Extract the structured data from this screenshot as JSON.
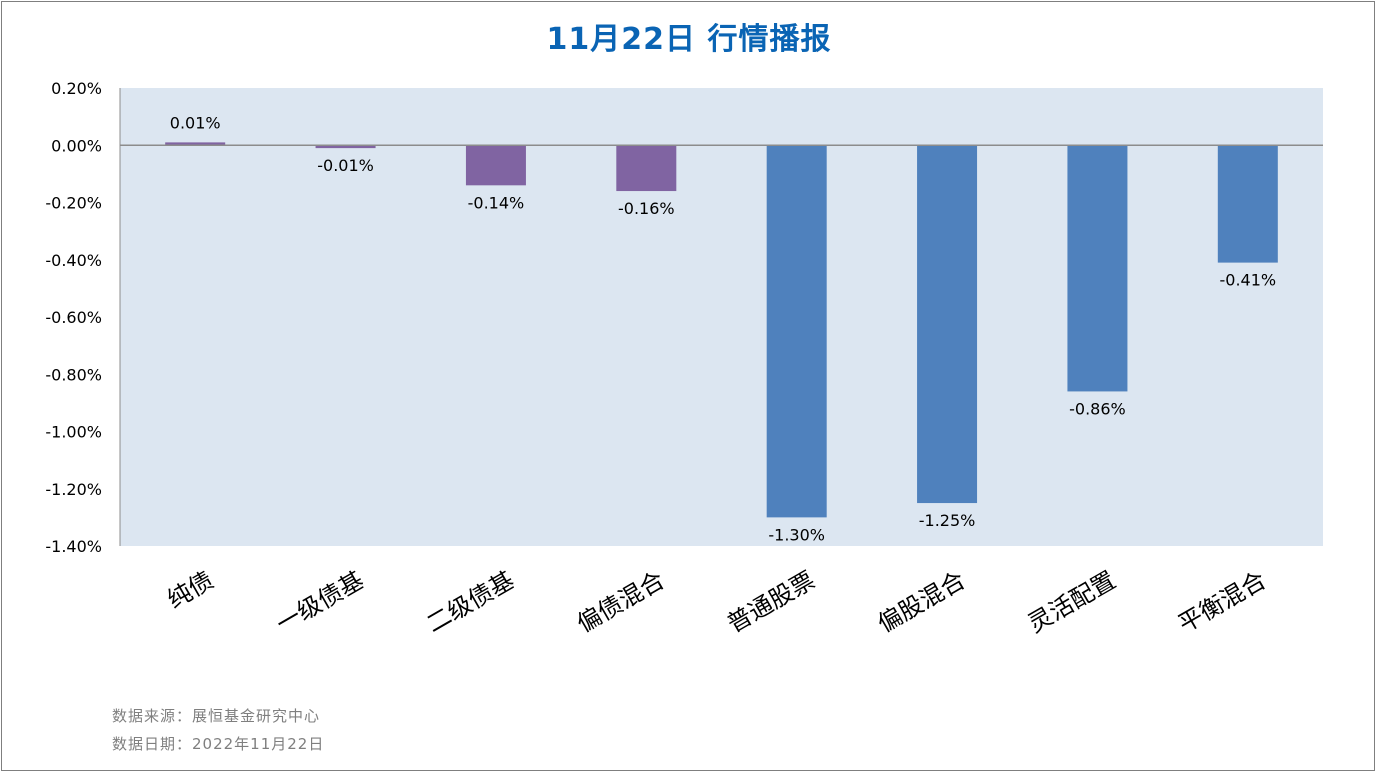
{
  "chart_data": {
    "type": "bar",
    "title": "11月22日  行情播报",
    "categories": [
      "纯债",
      "一级债基",
      "二级债基",
      "偏债混合",
      "普通股票",
      "偏股混合",
      "灵活配置",
      "平衡混合"
    ],
    "values": [
      0.01,
      -0.01,
      -0.14,
      -0.16,
      -1.3,
      -1.25,
      -0.86,
      -0.41
    ],
    "data_labels": [
      "0.01%",
      "-0.01%",
      "-0.14%",
      "-0.16%",
      "-1.30%",
      "-1.25%",
      "-0.86%",
      "-0.41%"
    ],
    "ylim": [
      -1.4,
      0.2
    ],
    "yticks": [
      0.2,
      0.0,
      -0.2,
      -0.4,
      -0.6,
      -0.8,
      -1.0,
      -1.2,
      -1.4
    ],
    "ytick_labels": [
      "0.20%",
      "0.00%",
      "-0.20%",
      "-0.40%",
      "-0.60%",
      "-0.80%",
      "-1.00%",
      "-1.20%",
      "-1.40%"
    ],
    "xlabel": "",
    "ylabel": "",
    "grid": false,
    "colors": {
      "bond": "#8064a2",
      "equity": "#4f81bd",
      "plot_background": "#dce6f1",
      "zero_line": "#8c8c8c"
    },
    "bar_colors": [
      "bond",
      "bond",
      "bond",
      "bond",
      "equity",
      "equity",
      "equity",
      "equity"
    ]
  },
  "footer": {
    "source": "数据来源：展恒基金研究中心",
    "date": "数据日期：2022年11月22日"
  }
}
